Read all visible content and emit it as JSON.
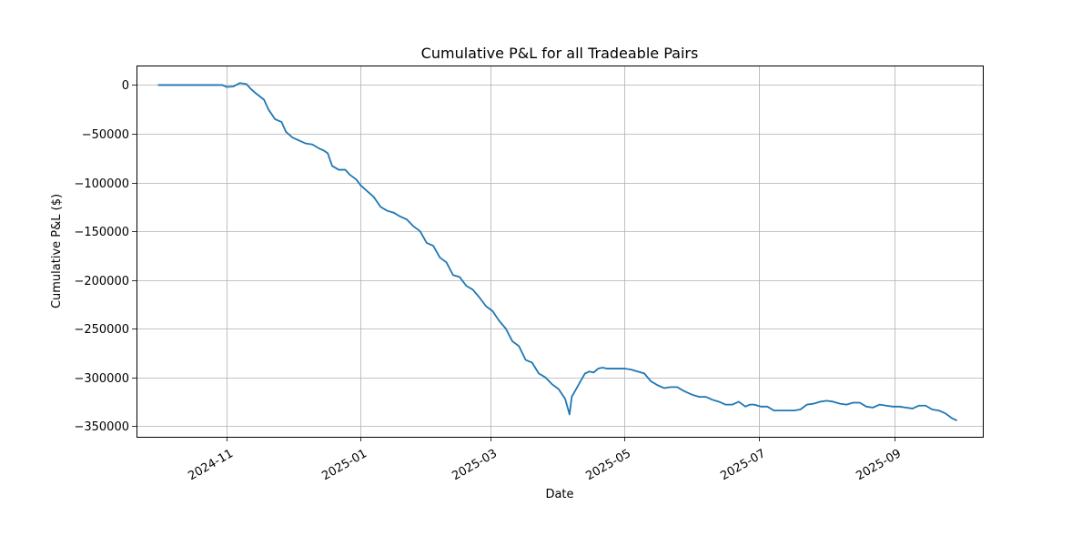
{
  "chart_data": {
    "type": "line",
    "title": "Cumulative P&L for all Tradeable Pairs",
    "xlabel": "Date",
    "ylabel": "Cumulative P&L ($)",
    "xlim": [
      "2024-09-21",
      "2025-10-11"
    ],
    "ylim": [
      -361000,
      20000
    ],
    "grid": true,
    "line_color": "#1f77b4",
    "x_ticks": [
      "2024-11-01",
      "2025-01-01",
      "2025-03-01",
      "2025-05-01",
      "2025-07-01",
      "2025-09-01"
    ],
    "x_tick_labels": [
      "2024-11",
      "2025-01",
      "2025-03",
      "2025-05",
      "2025-07",
      "2025-09"
    ],
    "y_ticks": [
      0,
      -50000,
      -100000,
      -150000,
      -200000,
      -250000,
      -300000,
      -350000
    ],
    "y_tick_labels": [
      "0",
      "−50000",
      "−100000",
      "−150000",
      "−200000",
      "−250000",
      "−300000",
      "−350000"
    ],
    "series": [
      {
        "x": [
          "2024-10-01",
          "2024-10-15",
          "2024-10-30",
          "2024-11-01",
          "2024-11-04",
          "2024-11-07",
          "2024-11-10",
          "2024-11-12",
          "2024-11-14",
          "2024-11-18",
          "2024-11-20",
          "2024-11-23",
          "2024-11-26",
          "2024-11-28",
          "2024-12-01",
          "2024-12-04",
          "2024-12-07",
          "2024-12-10",
          "2024-12-13",
          "2024-12-15",
          "2024-12-17",
          "2024-12-19",
          "2024-12-22",
          "2024-12-25",
          "2024-12-27",
          "2024-12-30",
          "2025-01-01",
          "2025-01-04",
          "2025-01-07",
          "2025-01-10",
          "2025-01-13",
          "2025-01-16",
          "2025-01-19",
          "2025-01-22",
          "2025-01-25",
          "2025-01-28",
          "2025-01-31",
          "2025-02-03",
          "2025-02-06",
          "2025-02-09",
          "2025-02-12",
          "2025-02-15",
          "2025-02-18",
          "2025-02-21",
          "2025-02-24",
          "2025-02-27",
          "2025-03-02",
          "2025-03-05",
          "2025-03-08",
          "2025-03-11",
          "2025-03-14",
          "2025-03-17",
          "2025-03-20",
          "2025-03-23",
          "2025-03-26",
          "2025-03-29",
          "2025-04-01",
          "2025-04-04",
          "2025-04-06",
          "2025-04-07",
          "2025-04-09",
          "2025-04-11",
          "2025-04-13",
          "2025-04-15",
          "2025-04-17",
          "2025-04-19",
          "2025-04-21",
          "2025-04-23",
          "2025-04-25",
          "2025-04-28",
          "2025-05-01",
          "2025-05-04",
          "2025-05-07",
          "2025-05-10",
          "2025-05-13",
          "2025-05-16",
          "2025-05-19",
          "2025-05-22",
          "2025-05-25",
          "2025-05-28",
          "2025-06-01",
          "2025-06-04",
          "2025-06-07",
          "2025-06-10",
          "2025-06-13",
          "2025-06-16",
          "2025-06-19",
          "2025-06-22",
          "2025-06-25",
          "2025-06-27",
          "2025-06-29",
          "2025-07-02",
          "2025-07-05",
          "2025-07-08",
          "2025-07-11",
          "2025-07-14",
          "2025-07-17",
          "2025-07-20",
          "2025-07-23",
          "2025-07-26",
          "2025-07-29",
          "2025-08-01",
          "2025-08-04",
          "2025-08-07",
          "2025-08-10",
          "2025-08-13",
          "2025-08-16",
          "2025-08-19",
          "2025-08-22",
          "2025-08-25",
          "2025-08-28",
          "2025-08-31",
          "2025-09-03",
          "2025-09-06",
          "2025-09-09",
          "2025-09-12",
          "2025-09-15",
          "2025-09-18",
          "2025-09-21",
          "2025-09-24",
          "2025-09-27",
          "2025-09-29"
        ],
        "values": [
          0,
          0,
          0,
          -2000,
          -1500,
          2000,
          1000,
          -4000,
          -8000,
          -15000,
          -25000,
          -35000,
          -38000,
          -48000,
          -54000,
          -57000,
          -60000,
          -61000,
          -65000,
          -67000,
          -70000,
          -83000,
          -87000,
          -87000,
          -92000,
          -97000,
          -103000,
          -109000,
          -115000,
          -125000,
          -129000,
          -131000,
          -135000,
          -138000,
          -145000,
          -150000,
          -162000,
          -165000,
          -177000,
          -182000,
          -195000,
          -197000,
          -206000,
          -210000,
          -218000,
          -227000,
          -232000,
          -242000,
          -250000,
          -263000,
          -268000,
          -282000,
          -285000,
          -296000,
          -300000,
          -307000,
          -312000,
          -322000,
          -338000,
          -320000,
          -312000,
          -304000,
          -296000,
          -294000,
          -295000,
          -291000,
          -290000,
          -291000,
          -291000,
          -291000,
          -291000,
          -292000,
          -294000,
          -296000,
          -304000,
          -308000,
          -311000,
          -310000,
          -310000,
          -314000,
          -318000,
          -320000,
          -320000,
          -323000,
          -325000,
          -328000,
          -328000,
          -325000,
          -330000,
          -328000,
          -328000,
          -330000,
          -330000,
          -334000,
          -334000,
          -334000,
          -334000,
          -333000,
          -328000,
          -327000,
          -325000,
          -324000,
          -325000,
          -327000,
          -328000,
          -326000,
          -326000,
          -330000,
          -331000,
          -328000,
          -329000,
          -330000,
          -330000,
          -331000,
          -332000,
          -329000,
          -329000,
          -333000,
          -334000,
          -337000,
          -342000,
          -344000
        ]
      }
    ]
  }
}
